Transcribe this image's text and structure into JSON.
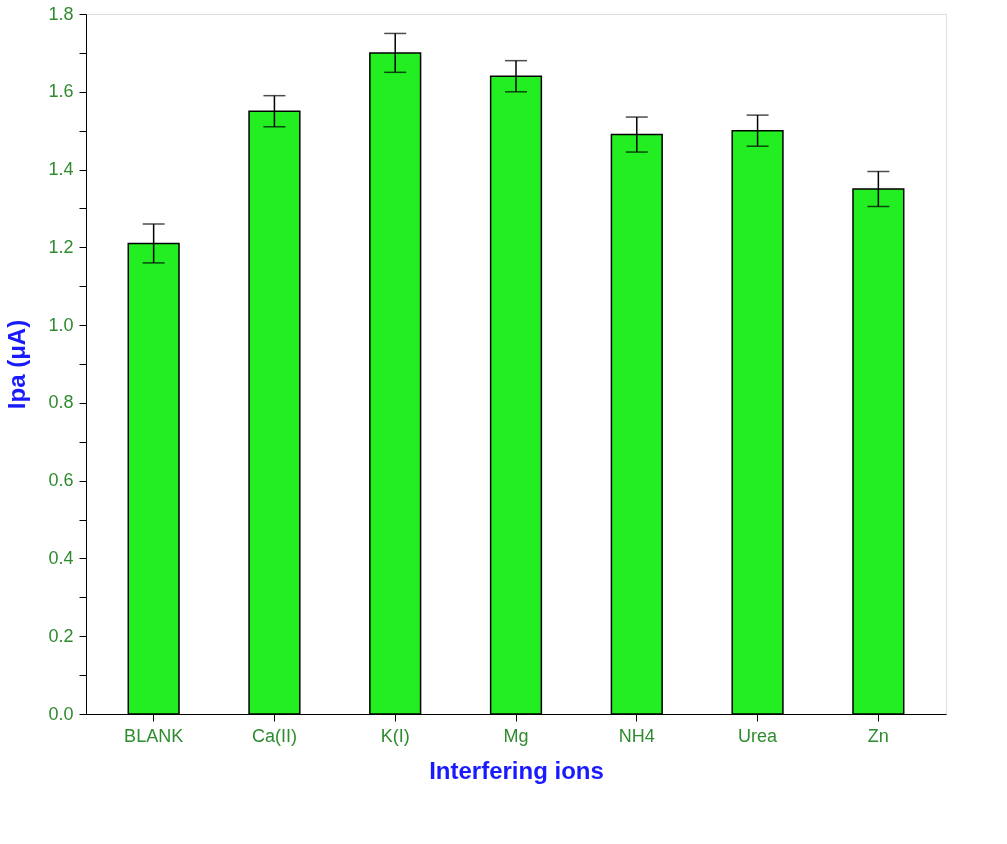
{
  "chart_data": {
    "type": "bar",
    "xlabel": "Interfering ions",
    "ylabel": "Ipa (μA)",
    "categories": [
      "BLANK",
      "Ca(II)",
      "K(I)",
      "Mg",
      "NH4",
      "Urea",
      "Zn"
    ],
    "values": [
      1.21,
      1.55,
      1.7,
      1.64,
      1.49,
      1.5,
      1.35
    ],
    "errors": [
      0.05,
      0.04,
      0.05,
      0.04,
      0.045,
      0.04,
      0.045
    ],
    "color": "#22ee22",
    "ylim": [
      0,
      1.8
    ],
    "yticks": [
      {
        "value": 0,
        "label": "0.0"
      },
      {
        "value": 0.1,
        "label": null
      },
      0.2,
      {
        "value": 0.3,
        "label": null
      },
      0.4,
      {
        "value": 0.5,
        "label": null
      },
      0.6,
      {
        "value": 0.7,
        "label": null
      },
      0.8,
      {
        "value": 0.9,
        "label": null
      },
      {
        "value": 1,
        "label": "1.0"
      },
      {
        "value": 1.1,
        "label": null
      },
      1.2,
      {
        "value": 1.3,
        "label": null
      },
      1.4,
      {
        "value": 1.5,
        "label": null
      },
      1.6,
      {
        "value": 1.7,
        "label": null
      },
      1.8
    ],
    "grid": false
  }
}
